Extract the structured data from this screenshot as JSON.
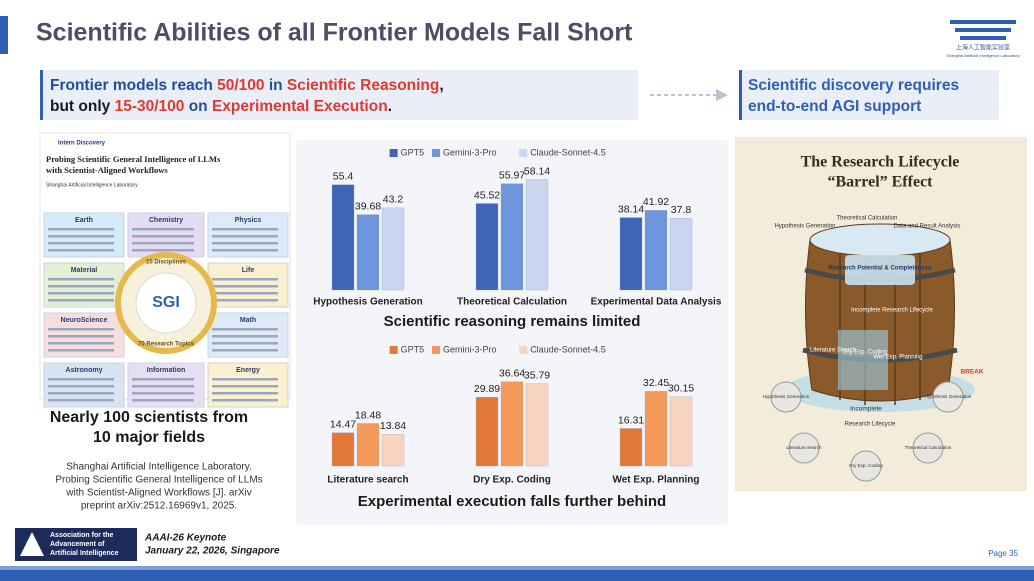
{
  "header": {
    "title": "Scientific Abilities of all Frontier Models Fall Short",
    "logo_text": "上海人工智能实验室",
    "logo_subtext": "Shanghai Artificial Intelligence Laboratory"
  },
  "callout_left": {
    "line1": [
      "Frontier models reach ",
      "50/100",
      " in ",
      "Scientific Reasoning",
      ","
    ],
    "line2": [
      "but only ",
      "15-30/100",
      " on ",
      "Experimental Execution",
      "."
    ]
  },
  "callout_right": {
    "lines": [
      "Scientific discovery requires",
      "end-to-end AGI support"
    ]
  },
  "paper": {
    "brand": "Intern Discovery",
    "title_lines": [
      "Probing Scientific General Intelligence of LLMs",
      "with Scientist-Aligned Workflows"
    ],
    "affiliation": "Shanghai Artificial Intelligence Laboratory",
    "disciplines": [
      "Earth",
      "Chemistry",
      "Physics",
      "Material",
      "Life",
      "NeuroScience",
      "Math",
      "Astronomy",
      "Information",
      "Energy"
    ],
    "center": "SGI",
    "ring_labels": [
      "10 Disciplines",
      "70 Research Topics"
    ]
  },
  "left_caption": {
    "lines": [
      "Nearly 100 scientists from",
      "10 major fields"
    ]
  },
  "citation": {
    "lines": [
      "Shanghai Artificial Intelligence Laboratory.",
      "Probing Scientific General Intelligence of LLMs",
      "with Scientist-Aligned Workflows [J]. arXiv",
      "preprint arXiv:2512.16969v1, 2025."
    ]
  },
  "chart_data": [
    {
      "type": "bar",
      "title": "Scientific reasoning remains limited",
      "categories": [
        "Hypothesis Generation",
        "Theoretical Calculation",
        "Experimental Data Analysis"
      ],
      "series": [
        {
          "name": "GPT5",
          "color": "#3f66b6",
          "values": [
            55.4,
            45.52,
            38.14
          ]
        },
        {
          "name": "Gemini-3-Pro",
          "color": "#6f95db",
          "values": [
            39.68,
            55.97,
            41.92
          ]
        },
        {
          "name": "Claude-Sonnet-4.5",
          "color": "#c8d6f0",
          "values": [
            43.2,
            58.14,
            37.8
          ]
        }
      ],
      "ylim": [
        0,
        60
      ]
    },
    {
      "type": "bar",
      "title": "Experimental execution falls further behind",
      "categories": [
        "Literature search",
        "Dry Exp. Coding",
        "Wet Exp. Planning"
      ],
      "series": [
        {
          "name": "GPT5",
          "color": "#e2793a",
          "values": [
            14.47,
            29.89,
            16.31
          ]
        },
        {
          "name": "Gemini-3-Pro",
          "color": "#f3995a",
          "values": [
            18.48,
            36.64,
            32.45
          ]
        },
        {
          "name": "Claude-Sonnet-4.5",
          "color": "#f8d3bd",
          "values": [
            13.84,
            35.79,
            30.15
          ]
        }
      ],
      "ylim": [
        0,
        40
      ]
    }
  ],
  "barrel": {
    "title_lines": [
      "The Research Lifecycle",
      "“Barrel” Effect"
    ],
    "labels": [
      "Hypothesis Generation",
      "Theoretical Calculation",
      "Data and Result Analysis",
      "Research Potential & Completeness",
      "Incomplete Research Lifecycle",
      "Literature Search",
      "Dry Exp. Coding",
      "Wet Exp. Planning",
      "BREAK",
      "Incomplete",
      "Research Lifecycle"
    ],
    "cycle": [
      "Hypothesis Generation",
      "Literature Search",
      "Dry Exp. Coding",
      "Theoretical Calculation",
      "Hypothesis Generation"
    ]
  },
  "footer": {
    "org_lines": [
      "Association for the",
      "Advancement of",
      "Artificial Intelligence"
    ],
    "event": "AAAI-26 Keynote",
    "date": "January 22, 2026, Singapore",
    "page": "Page 35"
  }
}
